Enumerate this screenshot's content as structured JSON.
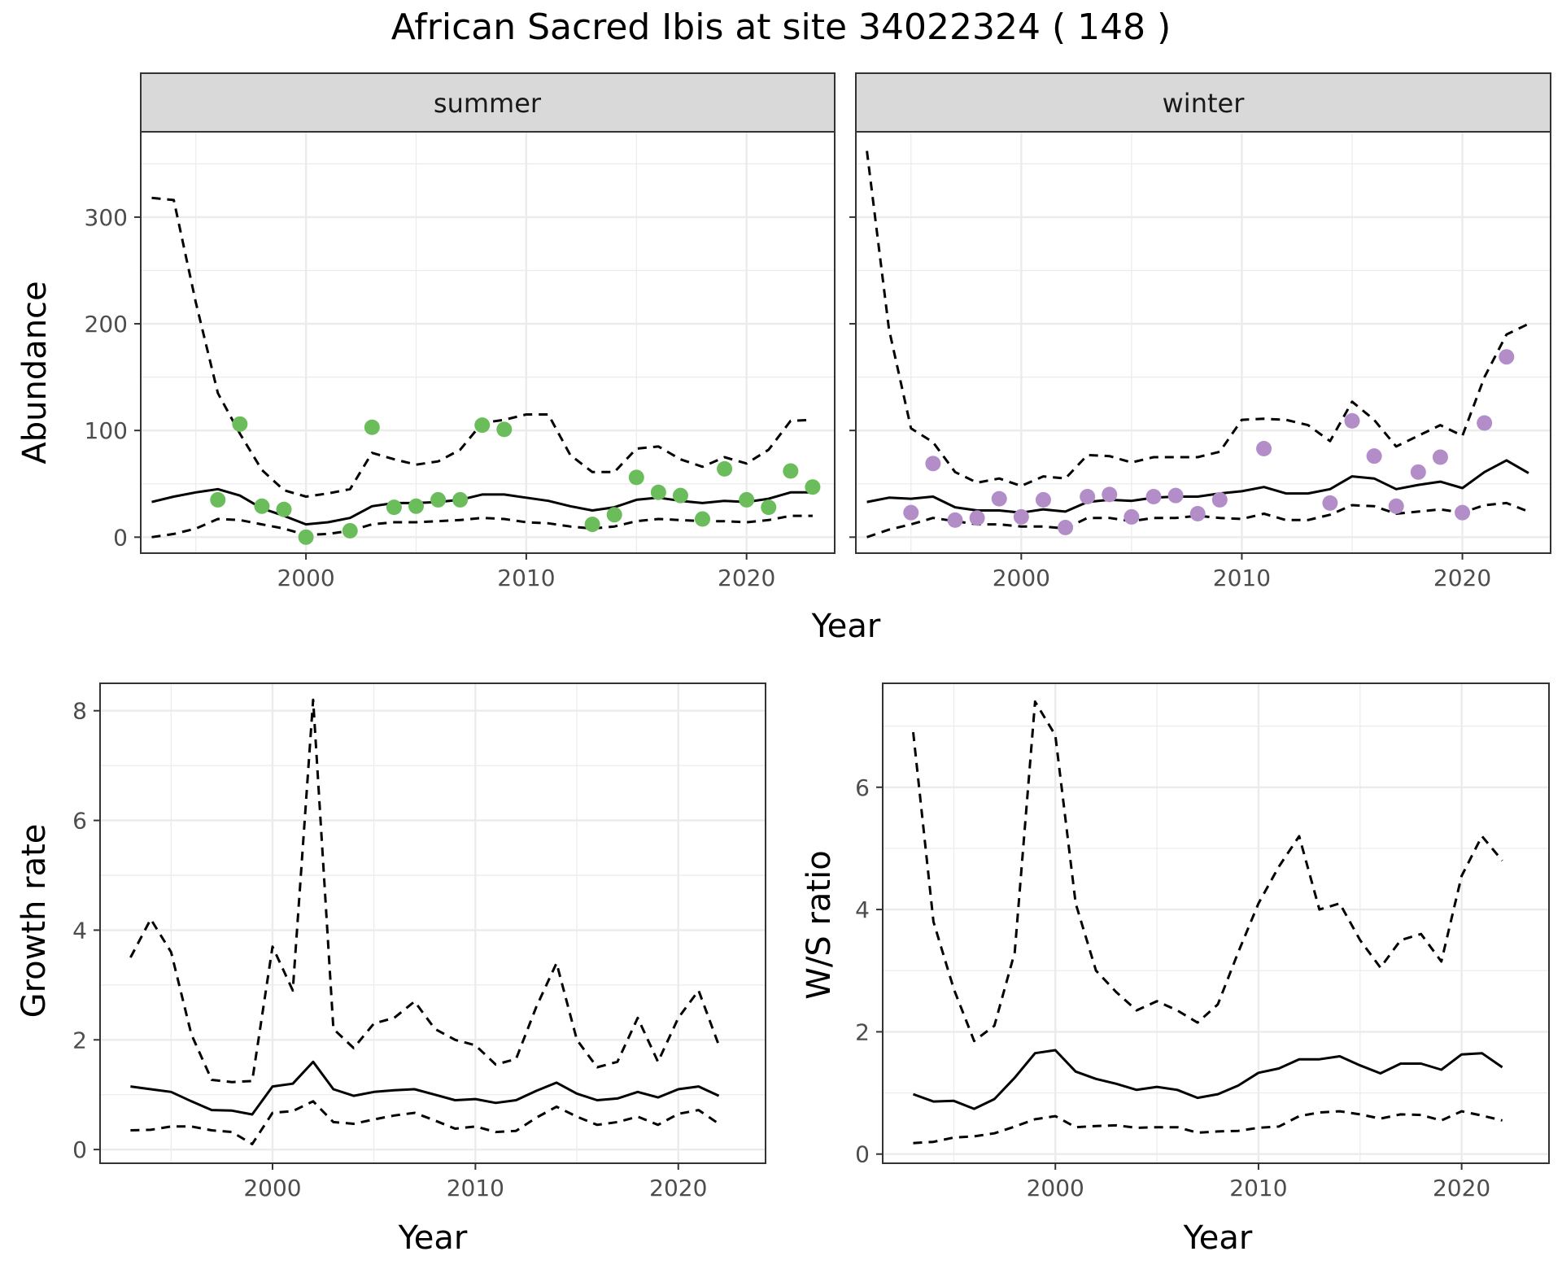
{
  "title": "African Sacred Ibis at site 34022324 ( 148 )",
  "colors": {
    "summer": "#6bbd5b",
    "winter": "#b38dc8",
    "line": "#000000",
    "strip": "#d9d9d9"
  },
  "chart_data": [
    {
      "type": "line",
      "panel": "summer",
      "xlabel": "Year",
      "ylabel": "Abundance",
      "xlim": [
        1992.5,
        2024
      ],
      "ylim": [
        -15,
        380
      ],
      "xticks": [
        2000,
        2010,
        2020
      ],
      "yticks": [
        0,
        100,
        200,
        300
      ],
      "x": [
        1993,
        1994,
        1995,
        1996,
        1997,
        1998,
        1999,
        2000,
        2001,
        2002,
        2003,
        2004,
        2005,
        2006,
        2007,
        2008,
        2009,
        2010,
        2011,
        2012,
        2013,
        2014,
        2015,
        2016,
        2017,
        2018,
        2019,
        2020,
        2021,
        2022,
        2023
      ],
      "series": [
        {
          "role": "estimate",
          "values": [
            33,
            38,
            42,
            45,
            39,
            27,
            20,
            12,
            14,
            18,
            29,
            32,
            32,
            33,
            35,
            40,
            40,
            37,
            34,
            29,
            25,
            28,
            35,
            37,
            34,
            32,
            34,
            33,
            36,
            42,
            42
          ]
        },
        {
          "role": "upper",
          "values": [
            318,
            316,
            220,
            135,
            97,
            63,
            44,
            38,
            41,
            45,
            79,
            73,
            68,
            71,
            82,
            107,
            110,
            115,
            115,
            77,
            61,
            61,
            83,
            85,
            73,
            66,
            75,
            69,
            82,
            109,
            110
          ]
        },
        {
          "role": "lower",
          "values": [
            0,
            3,
            8,
            17,
            16,
            12,
            8,
            2,
            3,
            6,
            12,
            14,
            14,
            15,
            16,
            18,
            17,
            14,
            13,
            10,
            8,
            10,
            15,
            17,
            16,
            15,
            15,
            14,
            16,
            20,
            20
          ]
        }
      ],
      "points": {
        "x": [
          1996,
          1997,
          1998,
          1999,
          2000,
          2002,
          2003,
          2004,
          2005,
          2006,
          2007,
          2008,
          2009,
          2013,
          2014,
          2015,
          2016,
          2017,
          2018,
          2019,
          2020,
          2021,
          2022,
          2023
        ],
        "values": [
          35,
          106,
          29,
          26,
          0,
          6,
          103,
          28,
          29,
          35,
          35,
          105,
          101,
          12,
          21,
          56,
          42,
          39,
          17,
          64,
          35,
          28,
          62,
          47
        ]
      }
    },
    {
      "type": "line",
      "panel": "winter",
      "xlabel": "Year",
      "ylabel": "Abundance",
      "xlim": [
        1992.5,
        2024
      ],
      "ylim": [
        -15,
        380
      ],
      "xticks": [
        2000,
        2010,
        2020
      ],
      "yticks": [
        0,
        100,
        200,
        300
      ],
      "x": [
        1993,
        1994,
        1995,
        1996,
        1997,
        1998,
        1999,
        2000,
        2001,
        2002,
        2003,
        2004,
        2005,
        2006,
        2007,
        2008,
        2009,
        2010,
        2011,
        2012,
        2013,
        2014,
        2015,
        2016,
        2017,
        2018,
        2019,
        2020,
        2021,
        2022,
        2023
      ],
      "series": [
        {
          "role": "estimate",
          "values": [
            33,
            37,
            36,
            38,
            28,
            25,
            25,
            23,
            26,
            24,
            33,
            35,
            34,
            37,
            38,
            38,
            41,
            43,
            47,
            41,
            41,
            45,
            57,
            55,
            45,
            49,
            52,
            46,
            61,
            72,
            60
          ]
        },
        {
          "role": "upper",
          "values": [
            362,
            195,
            102,
            89,
            61,
            51,
            55,
            48,
            57,
            55,
            77,
            76,
            70,
            75,
            75,
            75,
            80,
            110,
            111,
            110,
            105,
            90,
            127,
            110,
            85,
            95,
            105,
            95,
            150,
            190,
            200
          ]
        },
        {
          "role": "lower",
          "values": [
            0,
            7,
            12,
            18,
            15,
            12,
            12,
            10,
            10,
            8,
            18,
            18,
            15,
            18,
            18,
            20,
            18,
            17,
            22,
            16,
            16,
            21,
            30,
            29,
            22,
            24,
            26,
            23,
            30,
            32,
            24
          ]
        }
      ],
      "points": {
        "x": [
          1995,
          1996,
          1997,
          1998,
          1999,
          2000,
          2001,
          2002,
          2003,
          2004,
          2005,
          2006,
          2007,
          2008,
          2009,
          2011,
          2014,
          2015,
          2016,
          2017,
          2018,
          2019,
          2020,
          2021,
          2022
        ],
        "values": [
          23,
          69,
          16,
          18,
          36,
          19,
          35,
          9,
          38,
          40,
          19,
          38,
          39,
          22,
          35,
          83,
          32,
          109,
          76,
          29,
          61,
          75,
          23,
          107,
          169
        ]
      }
    },
    {
      "type": "line",
      "panel": "growth",
      "xlabel": "Year",
      "ylabel": "Growth rate",
      "xlim": [
        1991.5,
        2024.3
      ],
      "ylim": [
        -0.25,
        8.5
      ],
      "xticks": [
        2000,
        2010,
        2020
      ],
      "yticks": [
        0,
        2,
        4,
        6,
        8
      ],
      "x": [
        1993,
        1994,
        1995,
        1996,
        1997,
        1998,
        1999,
        2000,
        2001,
        2002,
        2003,
        2004,
        2005,
        2006,
        2007,
        2008,
        2009,
        2010,
        2011,
        2012,
        2013,
        2014,
        2015,
        2016,
        2017,
        2018,
        2019,
        2020,
        2021,
        2022
      ],
      "series": [
        {
          "role": "estimate",
          "values": [
            1.15,
            1.1,
            1.05,
            0.88,
            0.72,
            0.71,
            0.64,
            1.15,
            1.2,
            1.6,
            1.1,
            0.98,
            1.05,
            1.08,
            1.1,
            1.0,
            0.9,
            0.92,
            0.85,
            0.9,
            1.07,
            1.22,
            1.02,
            0.9,
            0.93,
            1.05,
            0.95,
            1.1,
            1.15,
            0.98
          ]
        },
        {
          "role": "upper",
          "values": [
            3.5,
            4.2,
            3.6,
            2.1,
            1.27,
            1.23,
            1.25,
            3.7,
            2.9,
            8.2,
            2.2,
            1.85,
            2.3,
            2.4,
            2.7,
            2.2,
            2.0,
            1.9,
            1.55,
            1.65,
            2.6,
            3.4,
            2.0,
            1.5,
            1.6,
            2.4,
            1.6,
            2.4,
            2.9,
            1.9
          ]
        },
        {
          "role": "lower",
          "values": [
            0.35,
            0.36,
            0.42,
            0.42,
            0.35,
            0.32,
            0.1,
            0.67,
            0.7,
            0.88,
            0.5,
            0.47,
            0.55,
            0.62,
            0.67,
            0.53,
            0.38,
            0.42,
            0.32,
            0.34,
            0.58,
            0.78,
            0.6,
            0.45,
            0.5,
            0.6,
            0.45,
            0.65,
            0.72,
            0.47
          ]
        }
      ]
    },
    {
      "type": "line",
      "panel": "ratio",
      "xlabel": "Year",
      "ylabel": "W/S ratio",
      "xlim": [
        1991.5,
        2024.3
      ],
      "ylim": [
        -0.15,
        7.7
      ],
      "xticks": [
        2000,
        2010,
        2020
      ],
      "yticks": [
        0,
        2,
        4,
        6
      ],
      "x": [
        1993,
        1994,
        1995,
        1996,
        1997,
        1998,
        1999,
        2000,
        2001,
        2002,
        2003,
        2004,
        2005,
        2006,
        2007,
        2008,
        2009,
        2010,
        2011,
        2012,
        2013,
        2014,
        2015,
        2016,
        2017,
        2018,
        2019,
        2020,
        2021,
        2022
      ],
      "series": [
        {
          "role": "estimate",
          "values": [
            0.98,
            0.86,
            0.87,
            0.74,
            0.9,
            1.25,
            1.65,
            1.7,
            1.35,
            1.23,
            1.15,
            1.05,
            1.1,
            1.05,
            0.92,
            0.98,
            1.12,
            1.33,
            1.4,
            1.55,
            1.55,
            1.6,
            1.45,
            1.32,
            1.48,
            1.48,
            1.38,
            1.63,
            1.65,
            1.42
          ]
        },
        {
          "role": "upper",
          "values": [
            6.9,
            3.8,
            2.7,
            1.85,
            2.1,
            3.3,
            7.4,
            6.85,
            4.1,
            3.0,
            2.65,
            2.35,
            2.5,
            2.35,
            2.15,
            2.45,
            3.3,
            4.1,
            4.7,
            5.2,
            4.0,
            4.1,
            3.5,
            3.05,
            3.5,
            3.6,
            3.15,
            4.55,
            5.2,
            4.8
          ]
        },
        {
          "role": "lower",
          "values": [
            0.18,
            0.2,
            0.27,
            0.29,
            0.34,
            0.45,
            0.57,
            0.62,
            0.44,
            0.46,
            0.47,
            0.43,
            0.44,
            0.44,
            0.35,
            0.37,
            0.38,
            0.43,
            0.45,
            0.62,
            0.68,
            0.7,
            0.65,
            0.58,
            0.65,
            0.64,
            0.55,
            0.7,
            0.63,
            0.55
          ]
        }
      ]
    }
  ]
}
